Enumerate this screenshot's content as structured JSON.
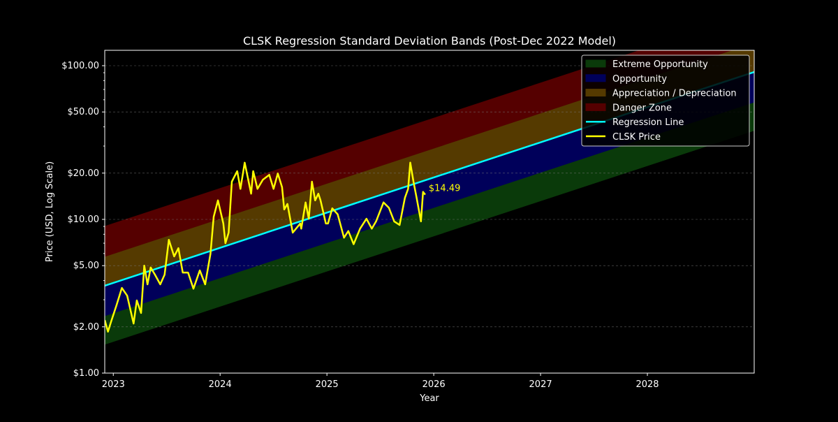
{
  "chart_data": {
    "type": "line",
    "title": "CLSK Regression Standard Deviation Bands (Post-Dec 2022 Model)",
    "xlabel": "Year",
    "ylabel": "Price (USD, Log Scale)",
    "xlim": [
      2022.92,
      2029.0
    ],
    "ylim": [
      1,
      125.9
    ],
    "yscale": "log",
    "grid": true,
    "legend_position": "top-right",
    "x_ticks": [
      2023,
      2024,
      2025,
      2026,
      2027,
      2028
    ],
    "x_tick_labels": [
      "2023",
      "2024",
      "2025",
      "2026",
      "2027",
      "2028"
    ],
    "y_ticks": [
      1,
      2,
      5,
      10,
      20,
      50,
      100
    ],
    "y_tick_labels": [
      "$1.00",
      "$2.00",
      "$5.00",
      "$10.00",
      "$20.00",
      "$50.00",
      "$100.00"
    ],
    "bands": [
      {
        "name": "Extreme Opportunity",
        "color": "#0a3a0a",
        "x": [
          2022.92,
          2029.0
        ],
        "lower": [
          1.54,
          37.9
        ],
        "upper": [
          2.36,
          58.0
        ]
      },
      {
        "name": "Opportunity",
        "color": "#00005a",
        "x": [
          2022.92,
          2029.0
        ],
        "lower": [
          2.36,
          58.0
        ],
        "upper": [
          3.7,
          91.0
        ]
      },
      {
        "name": "Appreciation / Depreciation",
        "color": "#553a00",
        "x": [
          2022.92,
          2029.0
        ],
        "lower": [
          3.7,
          91.0
        ],
        "upper": [
          5.74,
          141.0
        ]
      },
      {
        "name": "Danger Zone",
        "color": "#550000",
        "x": [
          2022.92,
          2029.0
        ],
        "lower": [
          5.74,
          141.0
        ],
        "upper": [
          9.0,
          221.0
        ]
      }
    ],
    "series": [
      {
        "name": "Regression Line",
        "color": "#00ffff",
        "x": [
          2022.92,
          2029.0
        ],
        "y": [
          3.7,
          91.0
        ]
      },
      {
        "name": "CLSK Price",
        "color": "#ffff00",
        "x": [
          2022.92,
          2022.95,
          2022.98,
          2023.03,
          2023.08,
          2023.13,
          2023.19,
          2023.22,
          2023.26,
          2023.29,
          2023.32,
          2023.35,
          2023.39,
          2023.44,
          2023.48,
          2023.52,
          2023.57,
          2023.61,
          2023.65,
          2023.7,
          2023.75,
          2023.81,
          2023.86,
          2023.91,
          2023.94,
          2023.98,
          2024.03,
          2024.05,
          2024.08,
          2024.11,
          2024.16,
          2024.19,
          2024.23,
          2024.29,
          2024.31,
          2024.35,
          2024.4,
          2024.46,
          2024.5,
          2024.54,
          2024.58,
          2024.6,
          2024.63,
          2024.68,
          2024.75,
          2024.76,
          2024.8,
          2024.83,
          2024.86,
          2024.89,
          2024.92,
          2024.94,
          2024.96,
          2024.99,
          2025.01,
          2025.05,
          2025.1,
          2025.16,
          2025.2,
          2025.25,
          2025.31,
          2025.37,
          2025.42,
          2025.46,
          2025.53,
          2025.58,
          2025.63,
          2025.68,
          2025.73,
          2025.76,
          2025.78,
          2025.81,
          2025.84,
          2025.88,
          2025.9,
          2025.92
        ],
        "y": [
          2.21,
          1.86,
          2.17,
          2.76,
          3.58,
          3.19,
          2.1,
          2.97,
          2.46,
          5.0,
          3.78,
          4.86,
          4.37,
          3.78,
          4.37,
          7.37,
          5.74,
          6.5,
          4.51,
          4.51,
          3.54,
          4.66,
          3.78,
          5.98,
          10.4,
          13.3,
          9.4,
          7.0,
          8.2,
          17.6,
          20.6,
          15.8,
          23.4,
          14.7,
          20.6,
          15.8,
          18.1,
          19.5,
          15.8,
          19.9,
          16.2,
          11.6,
          12.6,
          8.2,
          9.4,
          8.7,
          12.9,
          10.1,
          17.6,
          13.3,
          14.7,
          13.3,
          11.6,
          9.4,
          9.4,
          11.8,
          10.8,
          7.6,
          8.4,
          6.9,
          8.7,
          10.1,
          8.7,
          9.7,
          12.9,
          11.9,
          9.7,
          9.2,
          13.8,
          15.8,
          23.4,
          17.6,
          13.8,
          9.7,
          15.1,
          14.49
        ]
      }
    ],
    "annotations": [
      {
        "text": "$14.49",
        "x": 2025.92,
        "y": 14.49,
        "color": "#ffff00"
      }
    ]
  }
}
